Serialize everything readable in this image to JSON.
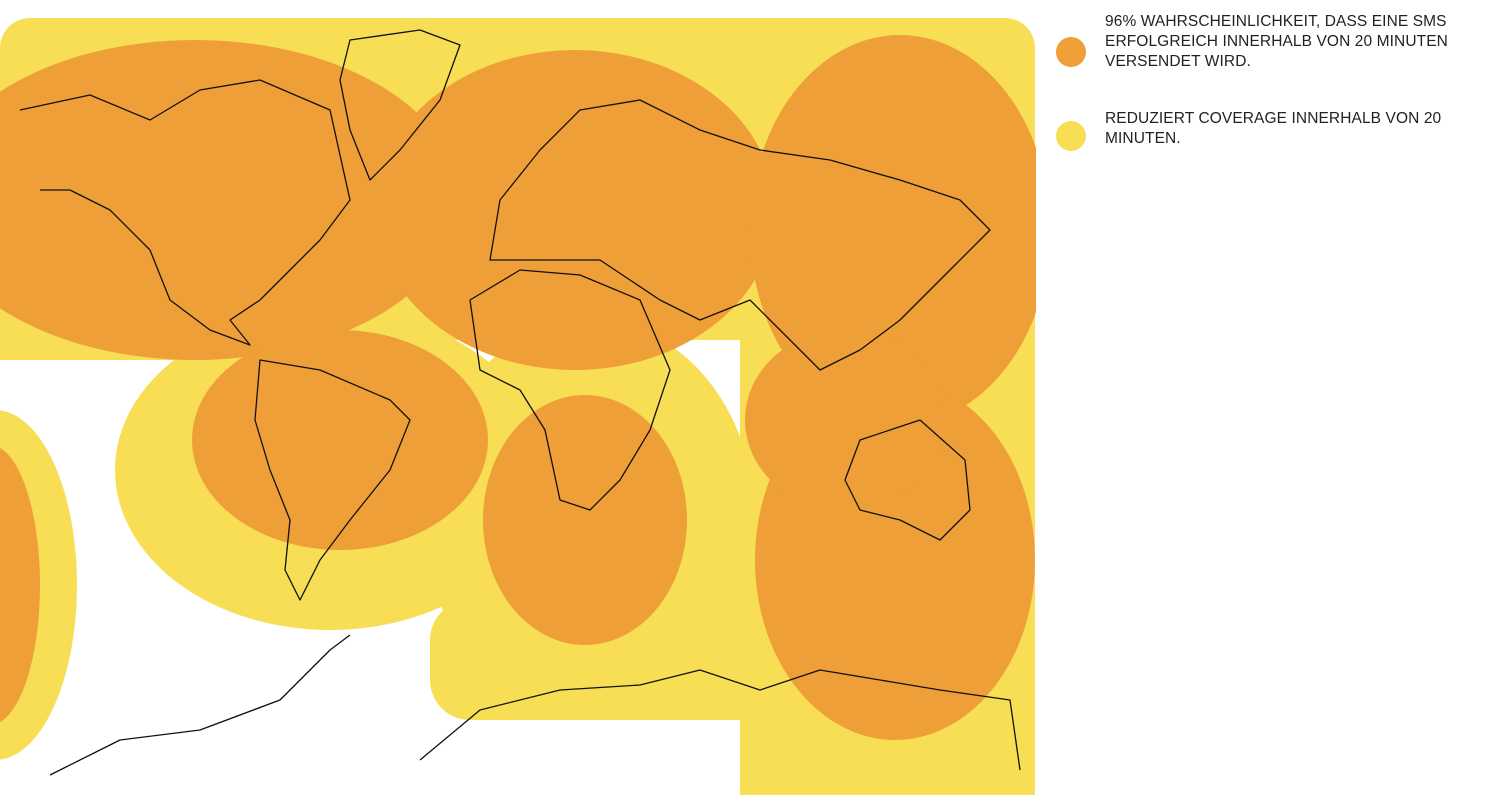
{
  "legend": {
    "items": [
      {
        "label": "96% WAHRSCHEINLICHKEIT, DASS EINE SMS ERFOLGREICH INNERHALB VON 20 MINUTEN VERSENDET WIRD.",
        "color": "#ef9f38"
      },
      {
        "label": "REDUZIERT COVERAGE INNERHALB VON 20 MINUTEN.",
        "color": "#f8de55"
      }
    ]
  }
}
